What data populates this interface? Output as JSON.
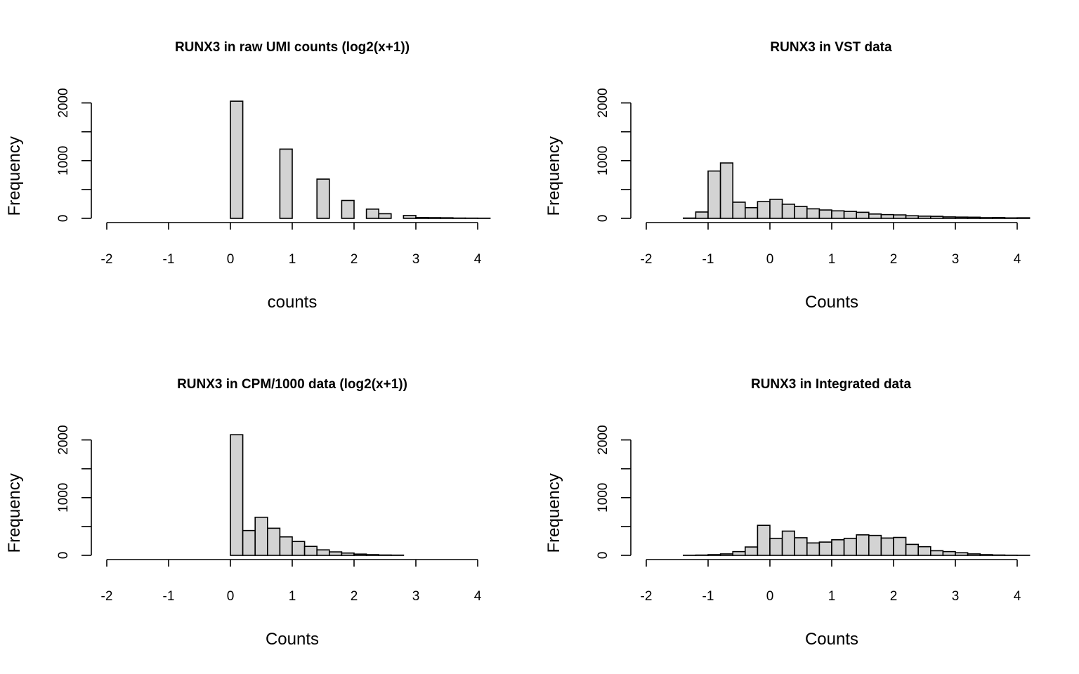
{
  "chart_data": [
    {
      "type": "bar",
      "title": "RUNX3 in raw UMI counts (log2(x+1))",
      "xlabel": "counts",
      "ylabel": "Frequency",
      "xlim": [
        -2,
        4
      ],
      "ylim": [
        0,
        2000
      ],
      "x_ticks": [
        "-2",
        "-1",
        "0",
        "1",
        "2",
        "3",
        "4"
      ],
      "y_ticks": [
        "0",
        "1000",
        "2000"
      ],
      "grid": false,
      "bin_width": 0.2,
      "bins": [
        {
          "x0": 0.0,
          "x1": 0.2,
          "count": 2030
        },
        {
          "x0": 0.2,
          "x1": 0.4,
          "count": 0
        },
        {
          "x0": 0.4,
          "x1": 0.6,
          "count": 0
        },
        {
          "x0": 0.6,
          "x1": 0.8,
          "count": 0
        },
        {
          "x0": 0.8,
          "x1": 1.0,
          "count": 1200
        },
        {
          "x0": 1.0,
          "x1": 1.2,
          "count": 0
        },
        {
          "x0": 1.2,
          "x1": 1.4,
          "count": 0
        },
        {
          "x0": 1.4,
          "x1": 1.6,
          "count": 680
        },
        {
          "x0": 1.6,
          "x1": 1.8,
          "count": 0
        },
        {
          "x0": 1.8,
          "x1": 2.0,
          "count": 310
        },
        {
          "x0": 2.0,
          "x1": 2.2,
          "count": 0
        },
        {
          "x0": 2.2,
          "x1": 2.4,
          "count": 160
        },
        {
          "x0": 2.4,
          "x1": 2.6,
          "count": 80
        },
        {
          "x0": 2.6,
          "x1": 2.8,
          "count": 0
        },
        {
          "x0": 2.8,
          "x1": 3.0,
          "count": 50
        },
        {
          "x0": 3.0,
          "x1": 3.2,
          "count": 15
        },
        {
          "x0": 3.2,
          "x1": 3.4,
          "count": 12
        },
        {
          "x0": 3.4,
          "x1": 3.6,
          "count": 10
        },
        {
          "x0": 3.6,
          "x1": 3.8,
          "count": 5
        },
        {
          "x0": 3.8,
          "x1": 4.0,
          "count": 4
        },
        {
          "x0": 4.0,
          "x1": 4.2,
          "count": 3
        }
      ]
    },
    {
      "type": "bar",
      "title": "RUNX3 in VST data",
      "xlabel": "Counts",
      "ylabel": "Frequency",
      "xlim": [
        -2,
        4
      ],
      "ylim": [
        0,
        2000
      ],
      "x_ticks": [
        "-2",
        "-1",
        "0",
        "1",
        "2",
        "3",
        "4"
      ],
      "y_ticks": [
        "0",
        "1000",
        "2000"
      ],
      "grid": false,
      "bin_width": 0.2,
      "bins": [
        {
          "x0": -1.4,
          "x1": -1.2,
          "count": 5
        },
        {
          "x0": -1.2,
          "x1": -1.0,
          "count": 110
        },
        {
          "x0": -1.0,
          "x1": -0.8,
          "count": 820
        },
        {
          "x0": -0.8,
          "x1": -0.6,
          "count": 960
        },
        {
          "x0": -0.6,
          "x1": -0.4,
          "count": 280
        },
        {
          "x0": -0.4,
          "x1": -0.2,
          "count": 185
        },
        {
          "x0": -0.2,
          "x1": 0.0,
          "count": 290
        },
        {
          "x0": 0.0,
          "x1": 0.2,
          "count": 330
        },
        {
          "x0": 0.2,
          "x1": 0.4,
          "count": 245
        },
        {
          "x0": 0.4,
          "x1": 0.6,
          "count": 205
        },
        {
          "x0": 0.6,
          "x1": 0.8,
          "count": 165
        },
        {
          "x0": 0.8,
          "x1": 1.0,
          "count": 145
        },
        {
          "x0": 1.0,
          "x1": 1.2,
          "count": 130
        },
        {
          "x0": 1.2,
          "x1": 1.4,
          "count": 120
        },
        {
          "x0": 1.4,
          "x1": 1.6,
          "count": 105
        },
        {
          "x0": 1.6,
          "x1": 1.8,
          "count": 75
        },
        {
          "x0": 1.8,
          "x1": 2.0,
          "count": 65
        },
        {
          "x0": 2.0,
          "x1": 2.2,
          "count": 60
        },
        {
          "x0": 2.2,
          "x1": 2.4,
          "count": 45
        },
        {
          "x0": 2.4,
          "x1": 2.6,
          "count": 38
        },
        {
          "x0": 2.6,
          "x1": 2.8,
          "count": 35
        },
        {
          "x0": 2.8,
          "x1": 3.0,
          "count": 25
        },
        {
          "x0": 3.0,
          "x1": 3.2,
          "count": 22
        },
        {
          "x0": 3.2,
          "x1": 3.4,
          "count": 20
        },
        {
          "x0": 3.4,
          "x1": 3.6,
          "count": 12
        },
        {
          "x0": 3.6,
          "x1": 3.8,
          "count": 15
        },
        {
          "x0": 3.8,
          "x1": 4.0,
          "count": 8
        },
        {
          "x0": 4.0,
          "x1": 4.2,
          "count": 10
        }
      ]
    },
    {
      "type": "bar",
      "title": "RUNX3 in CPM/1000 data (log2(x+1))",
      "xlabel": "Counts",
      "ylabel": "Frequency",
      "xlim": [
        -2,
        4
      ],
      "ylim": [
        0,
        2000
      ],
      "x_ticks": [
        "-2",
        "-1",
        "0",
        "1",
        "2",
        "3",
        "4"
      ],
      "y_ticks": [
        "0",
        "1000",
        "2000"
      ],
      "grid": false,
      "bin_width": 0.2,
      "bins": [
        {
          "x0": 0.0,
          "x1": 0.2,
          "count": 2090
        },
        {
          "x0": 0.2,
          "x1": 0.4,
          "count": 430
        },
        {
          "x0": 0.4,
          "x1": 0.6,
          "count": 660
        },
        {
          "x0": 0.6,
          "x1": 0.8,
          "count": 470
        },
        {
          "x0": 0.8,
          "x1": 1.0,
          "count": 320
        },
        {
          "x0": 1.0,
          "x1": 1.2,
          "count": 240
        },
        {
          "x0": 1.2,
          "x1": 1.4,
          "count": 155
        },
        {
          "x0": 1.4,
          "x1": 1.6,
          "count": 95
        },
        {
          "x0": 1.6,
          "x1": 1.8,
          "count": 60
        },
        {
          "x0": 1.8,
          "x1": 2.0,
          "count": 40
        },
        {
          "x0": 2.0,
          "x1": 2.2,
          "count": 22
        },
        {
          "x0": 2.2,
          "x1": 2.4,
          "count": 12
        },
        {
          "x0": 2.4,
          "x1": 2.6,
          "count": 6
        },
        {
          "x0": 2.6,
          "x1": 2.8,
          "count": 4
        }
      ]
    },
    {
      "type": "bar",
      "title": "RUNX3 in Integrated data",
      "xlabel": "Counts",
      "ylabel": "Frequency",
      "xlim": [
        -2,
        4
      ],
      "ylim": [
        0,
        2000
      ],
      "x_ticks": [
        "-2",
        "-1",
        "0",
        "1",
        "2",
        "3",
        "4"
      ],
      "y_ticks": [
        "0",
        "1000",
        "2000"
      ],
      "grid": false,
      "bin_width": 0.2,
      "bins": [
        {
          "x0": -1.4,
          "x1": -1.2,
          "count": 2
        },
        {
          "x0": -1.2,
          "x1": -1.0,
          "count": 5
        },
        {
          "x0": -1.0,
          "x1": -0.8,
          "count": 12
        },
        {
          "x0": -0.8,
          "x1": -0.6,
          "count": 25
        },
        {
          "x0": -0.6,
          "x1": -0.4,
          "count": 65
        },
        {
          "x0": -0.4,
          "x1": -0.2,
          "count": 145
        },
        {
          "x0": -0.2,
          "x1": 0.0,
          "count": 520
        },
        {
          "x0": 0.0,
          "x1": 0.2,
          "count": 295
        },
        {
          "x0": 0.2,
          "x1": 0.4,
          "count": 420
        },
        {
          "x0": 0.4,
          "x1": 0.6,
          "count": 305
        },
        {
          "x0": 0.6,
          "x1": 0.8,
          "count": 215
        },
        {
          "x0": 0.8,
          "x1": 1.0,
          "count": 230
        },
        {
          "x0": 1.0,
          "x1": 1.2,
          "count": 270
        },
        {
          "x0": 1.2,
          "x1": 1.4,
          "count": 295
        },
        {
          "x0": 1.4,
          "x1": 1.6,
          "count": 355
        },
        {
          "x0": 1.6,
          "x1": 1.8,
          "count": 345
        },
        {
          "x0": 1.8,
          "x1": 2.0,
          "count": 300
        },
        {
          "x0": 2.0,
          "x1": 2.2,
          "count": 310
        },
        {
          "x0": 2.2,
          "x1": 2.4,
          "count": 190
        },
        {
          "x0": 2.4,
          "x1": 2.6,
          "count": 150
        },
        {
          "x0": 2.6,
          "x1": 2.8,
          "count": 80
        },
        {
          "x0": 2.8,
          "x1": 3.0,
          "count": 65
        },
        {
          "x0": 3.0,
          "x1": 3.2,
          "count": 45
        },
        {
          "x0": 3.2,
          "x1": 3.4,
          "count": 25
        },
        {
          "x0": 3.4,
          "x1": 3.6,
          "count": 12
        },
        {
          "x0": 3.6,
          "x1": 3.8,
          "count": 6
        },
        {
          "x0": 3.8,
          "x1": 4.0,
          "count": 3
        },
        {
          "x0": 4.0,
          "x1": 4.2,
          "count": 2
        }
      ]
    }
  ],
  "colors": {
    "bar_fill": "#d3d3d3",
    "bar_stroke": "#000000",
    "background": "#ffffff"
  }
}
